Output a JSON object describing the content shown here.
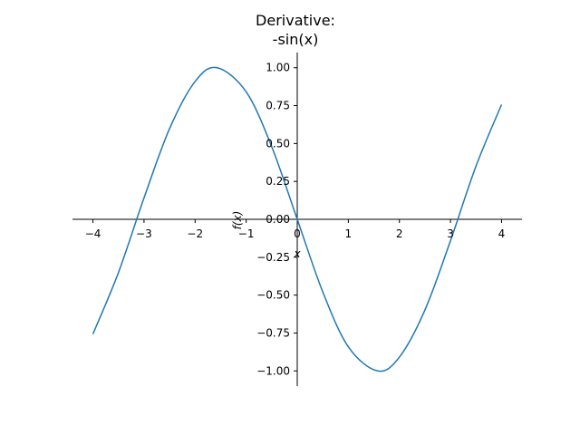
{
  "chart_data": {
    "type": "line",
    "title_line1": "Derivative:",
    "title_line2": "-sin(x)",
    "xlabel": "x",
    "ylabel": "f(x)",
    "xlim": [
      -4.4,
      4.4
    ],
    "ylim": [
      -1.1,
      1.1
    ],
    "x_ticks": [
      -4,
      -3,
      -2,
      -1,
      0,
      1,
      2,
      3,
      4
    ],
    "x_tick_labels": [
      "−4",
      "−3",
      "−2",
      "−1",
      "0",
      "1",
      "2",
      "3",
      "4"
    ],
    "y_ticks": [
      1.0,
      0.75,
      0.5,
      0.25,
      0.0,
      -0.25,
      -0.5,
      -0.75,
      -1.0
    ],
    "y_tick_labels": [
      "1.00",
      "0.75",
      "0.50",
      "0.25",
      "0.00",
      "−0.25",
      "−0.50",
      "−0.75",
      "−1.00"
    ],
    "grid": false,
    "spines": "centered at origin",
    "series": [
      {
        "color": "#1f77b4",
        "x": [
          -4.0,
          -3.5,
          -3.0,
          -2.5,
          -2.0,
          -1.5708,
          -1.0,
          -0.5,
          0.0,
          0.5,
          1.0,
          1.5708,
          2.0,
          2.5,
          3.0,
          3.5,
          4.0
        ],
        "y": [
          -0.757,
          -0.351,
          0.141,
          0.598,
          0.909,
          1.0,
          0.841,
          0.479,
          0.0,
          -0.479,
          -0.841,
          -1.0,
          -0.909,
          -0.598,
          -0.141,
          0.351,
          0.757
        ]
      }
    ]
  }
}
